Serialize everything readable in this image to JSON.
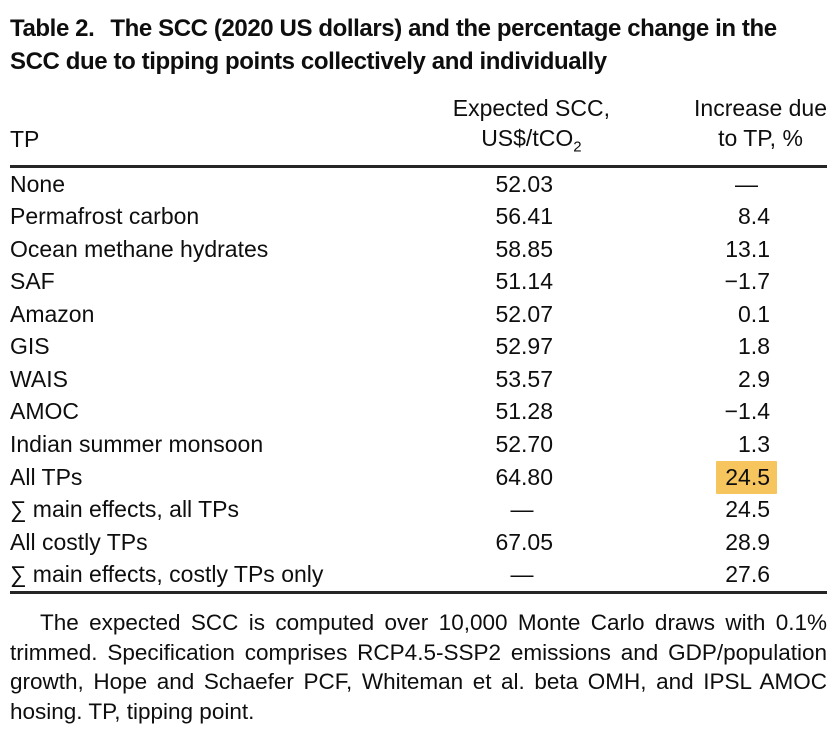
{
  "table": {
    "label": "Table 2.",
    "title": "The SCC (2020 US dollars) and the percentage change in the SCC due to tipping points collectively and individually",
    "columns": {
      "tp": "TP",
      "scc_line1": "Expected SCC,",
      "scc_unit_base": "US$/tCO",
      "scc_unit_sub": "2",
      "pct_line1": "Increase due",
      "pct_line2": "to TP, %"
    },
    "rows": [
      {
        "tp": "None",
        "scc": "52.03",
        "pct": "—"
      },
      {
        "tp": "Permafrost carbon",
        "scc": "56.41",
        "pct": "8.4"
      },
      {
        "tp": "Ocean methane hydrates",
        "scc": "58.85",
        "pct": "13.1"
      },
      {
        "tp": "SAF",
        "scc": "51.14",
        "pct": "−1.7"
      },
      {
        "tp": "Amazon",
        "scc": "52.07",
        "pct": "0.1"
      },
      {
        "tp": "GIS",
        "scc": "52.97",
        "pct": "1.8"
      },
      {
        "tp": "WAIS",
        "scc": "53.57",
        "pct": "2.9"
      },
      {
        "tp": "AMOC",
        "scc": "51.28",
        "pct": "−1.4"
      },
      {
        "tp": "Indian summer monsoon",
        "scc": "52.70",
        "pct": "1.3"
      },
      {
        "tp": "All TPs",
        "scc": "64.80",
        "pct": "24.5"
      },
      {
        "tp": "∑ main effects, all TPs",
        "scc": "—",
        "pct": "24.5"
      },
      {
        "tp": "All costly TPs",
        "scc": "67.05",
        "pct": "28.9"
      },
      {
        "tp": "∑ main effects, costly TPs only",
        "scc": "—",
        "pct": "27.6"
      }
    ],
    "footnote": "The expected SCC is computed over 10,000 Monte Carlo draws with 0.1% trimmed. Specification comprises RCP4.5-SSP2 emissions and GDP/population growth, Hope and Schaefer PCF, Whiteman et al. beta OMH, and IPSL AMOC hosing. TP, tipping point."
  },
  "colors": {
    "highlight_bg": "#F6C55E",
    "text": "#0e0e0e",
    "rule": "#262626"
  }
}
